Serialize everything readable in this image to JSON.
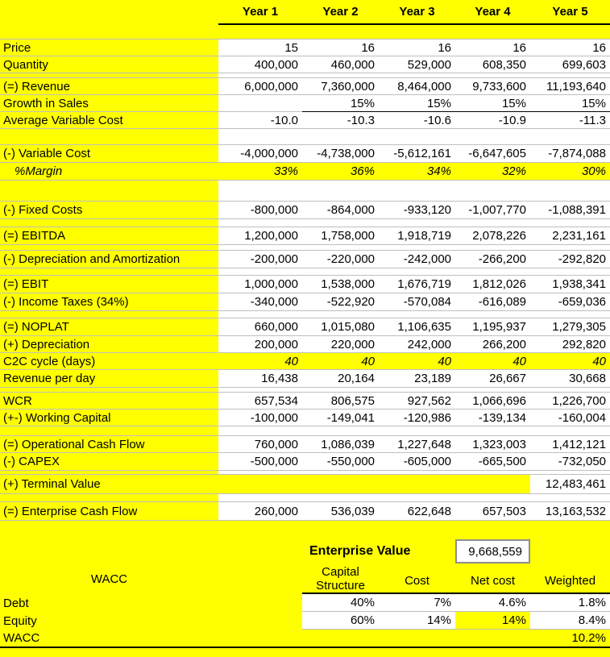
{
  "sheet": {
    "columns_header": [
      "Year 1",
      "Year 2",
      "Year 3",
      "Year 4",
      "Year 5"
    ],
    "rows": [
      {
        "id": "price",
        "label": "Price",
        "values": [
          "15",
          "16",
          "16",
          "16",
          "16"
        ]
      },
      {
        "id": "quantity",
        "label": "Quantity",
        "values": [
          "400,000",
          "460,000",
          "529,000",
          "608,350",
          "699,603"
        ]
      },
      {
        "id": "revenue",
        "label": "(=) Revenue",
        "values": [
          "6,000,000",
          "7,360,000",
          "8,464,000",
          "9,733,600",
          "11,193,640"
        ]
      },
      {
        "id": "growth",
        "label": "Growth in Sales",
        "values": [
          "",
          "15%",
          "15%",
          "15%",
          "15%"
        ]
      },
      {
        "id": "avc",
        "label": "Average Variable Cost",
        "values": [
          "-10.0",
          "-10.3",
          "-10.6",
          "-10.9",
          "-11.3"
        ]
      },
      {
        "id": "varcost",
        "label": "(-) Variable Cost",
        "values": [
          "-4,000,000",
          "-4,738,000",
          "-5,612,161",
          "-6,647,605",
          "-7,874,088"
        ]
      },
      {
        "id": "margin",
        "label": "%Margin",
        "values": [
          "33%",
          "36%",
          "34%",
          "32%",
          "30%"
        ]
      },
      {
        "id": "fixed",
        "label": "(-) Fixed Costs",
        "values": [
          "-800,000",
          "-864,000",
          "-933,120",
          "-1,007,770",
          "-1,088,391"
        ]
      },
      {
        "id": "ebitda",
        "label": "(=) EBITDA",
        "values": [
          "1,200,000",
          "1,758,000",
          "1,918,719",
          "2,078,226",
          "2,231,161"
        ]
      },
      {
        "id": "depamort",
        "label": "(-) Depreciation and Amortization",
        "values": [
          "-200,000",
          "-220,000",
          "-242,000",
          "-266,200",
          "-292,820"
        ]
      },
      {
        "id": "ebit",
        "label": "(=) EBIT",
        "values": [
          "1,000,000",
          "1,538,000",
          "1,676,719",
          "1,812,026",
          "1,938,341"
        ]
      },
      {
        "id": "taxes",
        "label": "(-) Income Taxes (34%)",
        "values": [
          "-340,000",
          "-522,920",
          "-570,084",
          "-616,089",
          "-659,036"
        ]
      },
      {
        "id": "noplat",
        "label": "(=) NOPLAT",
        "values": [
          "660,000",
          "1,015,080",
          "1,106,635",
          "1,195,937",
          "1,279,305"
        ]
      },
      {
        "id": "depreciation",
        "label": "(+) Depreciation",
        "values": [
          "200,000",
          "220,000",
          "242,000",
          "266,200",
          "292,820"
        ]
      },
      {
        "id": "c2c",
        "label": "C2C cycle (days)",
        "values": [
          "40",
          "40",
          "40",
          "40",
          "40"
        ]
      },
      {
        "id": "revperday",
        "label": "Revenue per day",
        "values": [
          "16,438",
          "20,164",
          "23,189",
          "26,667",
          "30,668"
        ]
      },
      {
        "id": "wcr",
        "label": "WCR",
        "values": [
          "657,534",
          "806,575",
          "927,562",
          "1,066,696",
          "1,226,700"
        ]
      },
      {
        "id": "wc",
        "label": "(+-) Working Capital",
        "values": [
          "-100,000",
          "-149,041",
          "-120,986",
          "-139,134",
          "-160,004"
        ]
      },
      {
        "id": "opcf",
        "label": "(=) Operational Cash Flow",
        "values": [
          "760,000",
          "1,086,039",
          "1,227,648",
          "1,323,003",
          "1,412,121"
        ]
      },
      {
        "id": "capex",
        "label": "(-) CAPEX",
        "values": [
          "-500,000",
          "-550,000",
          "-605,000",
          "-665,500",
          "-732,050"
        ]
      },
      {
        "id": "terminal",
        "label": "(+) Terminal Value",
        "values": [
          "",
          "",
          "",
          "",
          "12,483,461"
        ]
      },
      {
        "id": "ecf",
        "label": "(=) Enterprise Cash Flow",
        "values": [
          "260,000",
          "536,039",
          "622,648",
          "657,503",
          "13,163,532"
        ]
      }
    ],
    "bottom": {
      "enterprise_value_label": "Enterprise Value",
      "enterprise_value": "9,668,559",
      "wacc_table": {
        "row_header_label": "WACC",
        "columns": [
          "Capital Structure",
          "Cost",
          "Net cost",
          "Weighted"
        ],
        "rows": [
          {
            "id": "debt",
            "label": "Debt",
            "values": [
              "40%",
              "7%",
              "4.6%",
              "1.8%"
            ]
          },
          {
            "id": "equity",
            "label": "Equity",
            "values": [
              "60%",
              "14%",
              "14%",
              "8.4%"
            ],
            "highlighted_value_index": 2
          }
        ],
        "total_label": "WACC",
        "total_value": "10.2%"
      }
    },
    "colors": {
      "highlight": "#ffff00",
      "cell": "#ffffff",
      "gridline": "#bfbfbf",
      "rule": "#000000",
      "value_box_border": "#8f8f8f"
    }
  }
}
